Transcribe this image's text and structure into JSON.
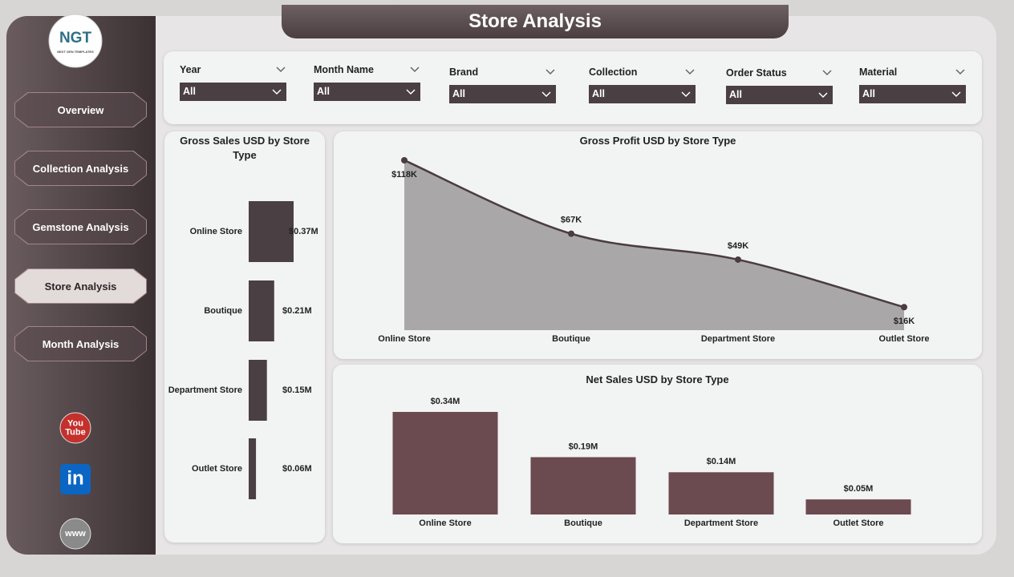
{
  "header": {
    "title": "Store Analysis"
  },
  "logo": {
    "text": "NGT",
    "subtext": "NEXT GEN TEMPLATES"
  },
  "nav": [
    "Overview",
    "Collection Analysis",
    "Gemstone Analysis",
    "Store Analysis",
    "Month Analysis"
  ],
  "active_nav": 3,
  "social": [
    {
      "lines": [
        "You",
        "Tube"
      ]
    },
    {
      "lines": [
        "in"
      ]
    },
    {
      "lines": [
        "www"
      ]
    }
  ],
  "filters": [
    {
      "label": "Year",
      "value": "All"
    },
    {
      "label": "Month Name",
      "value": "All"
    },
    {
      "label": "Brand",
      "value": "All"
    },
    {
      "label": "Collection",
      "value": "All"
    },
    {
      "label": "Order Status",
      "value": "All"
    },
    {
      "label": "Material",
      "value": "All"
    }
  ],
  "chart_data": [
    {
      "type": "bar",
      "orientation": "horizontal",
      "title": "Gross Sales USD by Store Type",
      "categories": [
        "Online Store",
        "Boutique",
        "Department Store",
        "Outlet Store"
      ],
      "values": [
        0.37,
        0.21,
        0.15,
        0.06
      ],
      "value_labels": [
        "$0.37M",
        "$0.21M",
        "$0.15M",
        "$0.06M"
      ],
      "color": "#4a3f42"
    },
    {
      "type": "area",
      "title": "Gross Profit USD by Store Type",
      "categories": [
        "Online Store",
        "Boutique",
        "Department Store",
        "Outlet Store"
      ],
      "values": [
        118,
        67,
        49,
        16
      ],
      "value_labels": [
        "$118K",
        "$67K",
        "$49K",
        "$16K"
      ],
      "color": "#4a3c40",
      "fill": "#a9a7a8"
    },
    {
      "type": "bar",
      "orientation": "vertical",
      "title": "Net Sales USD by Store Type",
      "categories": [
        "Online Store",
        "Boutique",
        "Department Store",
        "Outlet Store"
      ],
      "values": [
        0.34,
        0.19,
        0.14,
        0.05
      ],
      "value_labels": [
        "$0.34M",
        "$0.19M",
        "$0.14M",
        "$0.05M"
      ],
      "color": "#6b4a50"
    }
  ]
}
